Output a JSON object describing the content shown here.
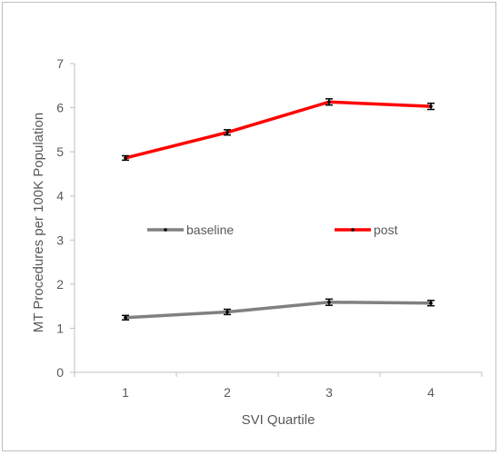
{
  "chart_data": {
    "type": "line",
    "title": "",
    "xlabel": "SVI Quartile",
    "ylabel": "MT Procedures per 100K Population",
    "categories": [
      "1",
      "2",
      "3",
      "4"
    ],
    "ylim": [
      0,
      7
    ],
    "yticks": [
      "0",
      "1",
      "2",
      "3",
      "4",
      "5",
      "6",
      "7"
    ],
    "grid": false,
    "legend_position": "middle",
    "series": [
      {
        "name": "baseline",
        "color": "#808080",
        "values": [
          1.24,
          1.37,
          1.59,
          1.57
        ],
        "errors": [
          0.05,
          0.06,
          0.07,
          0.06
        ]
      },
      {
        "name": "post",
        "color": "#ff0000",
        "values": [
          4.86,
          5.44,
          6.13,
          6.03
        ],
        "errors": [
          0.05,
          0.06,
          0.07,
          0.07
        ]
      }
    ]
  }
}
